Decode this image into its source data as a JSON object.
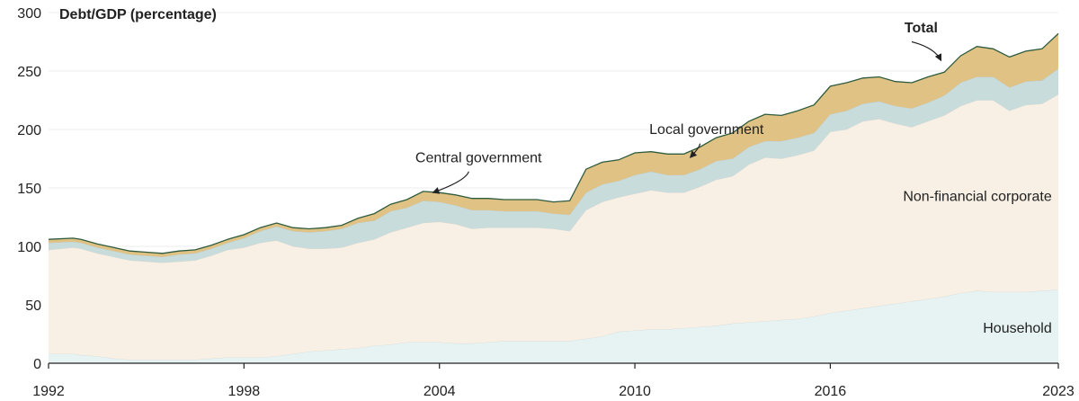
{
  "chart_data": {
    "type": "area",
    "stacked": true,
    "ylabel": "Debt/GDP (percentage)",
    "ylim": [
      0,
      300
    ],
    "yticks": [
      0,
      50,
      100,
      150,
      200,
      250,
      300
    ],
    "xlim": [
      1992,
      2023
    ],
    "xticks": [
      1992,
      1998,
      2004,
      2010,
      2016,
      2023
    ],
    "x": [
      1992,
      1992.75,
      1993,
      1993.5,
      1994,
      1994.5,
      1995,
      1995.5,
      1996,
      1996.5,
      1997,
      1997.5,
      1998,
      1998.5,
      1999,
      1999.5,
      2000,
      2000.5,
      2001,
      2001.5,
      2002,
      2002.5,
      2003,
      2003.5,
      2004,
      2004.5,
      2005,
      2005.5,
      2006,
      2006.5,
      2007,
      2007.5,
      2008,
      2008.5,
      2009,
      2009.5,
      2010,
      2010.5,
      2011,
      2011.5,
      2012,
      2012.5,
      2013,
      2013.5,
      2014,
      2014.5,
      2015,
      2015.5,
      2016,
      2016.5,
      2017,
      2017.5,
      2018,
      2018.5,
      2019,
      2019.5,
      2020,
      2020.5,
      2021,
      2021.5,
      2022,
      2022.5,
      2023
    ],
    "series": [
      {
        "name": "Household",
        "color": "#e6f3f2",
        "values": [
          8,
          8,
          7,
          6,
          4,
          3,
          3,
          3,
          3,
          3,
          4,
          5,
          5,
          5,
          6,
          8,
          10,
          11,
          12,
          13,
          15,
          16,
          18,
          18,
          18,
          17,
          17,
          18,
          19,
          19,
          19,
          19,
          19,
          21,
          23,
          27,
          28,
          29,
          29,
          30,
          31,
          32,
          34,
          35,
          36,
          37,
          38,
          40,
          43,
          45,
          47,
          49,
          51,
          53,
          55,
          57,
          60,
          62,
          61,
          61,
          61,
          62,
          63
        ]
      },
      {
        "name": "Non-financial corporate",
        "color": "#f8f0e5",
        "values": [
          89,
          91,
          91,
          88,
          87,
          85,
          84,
          83,
          84,
          85,
          88,
          92,
          94,
          98,
          99,
          92,
          88,
          87,
          87,
          90,
          91,
          96,
          98,
          102,
          103,
          102,
          98,
          98,
          97,
          97,
          97,
          96,
          94,
          110,
          115,
          115,
          117,
          119,
          117,
          116,
          120,
          125,
          126,
          135,
          140,
          138,
          140,
          142,
          155,
          155,
          160,
          160,
          154,
          149,
          152,
          155,
          160,
          163,
          164,
          155,
          160,
          160,
          167
        ]
      },
      {
        "name": "Central government",
        "color": "#c9dcdc",
        "values": [
          6,
          5,
          5,
          5,
          5,
          5,
          5,
          5,
          6,
          6,
          6,
          6,
          8,
          10,
          12,
          13,
          14,
          15,
          16,
          17,
          16,
          18,
          17,
          19,
          17,
          16,
          16,
          15,
          14,
          14,
          14,
          13,
          14,
          15,
          15,
          14,
          16,
          16,
          15,
          15,
          15,
          16,
          15,
          15,
          14,
          15,
          15,
          15,
          15,
          16,
          15,
          15,
          15,
          16,
          16,
          17,
          20,
          20,
          20,
          20,
          20,
          20,
          22
        ]
      },
      {
        "name": "Local government",
        "color": "#dfc284",
        "values": [
          3,
          3,
          3,
          3,
          3,
          3,
          3,
          3,
          3,
          3,
          3,
          3,
          3,
          3,
          3,
          3,
          3,
          3,
          3,
          4,
          6,
          6,
          7,
          8,
          8,
          9,
          10,
          10,
          10,
          10,
          10,
          10,
          12,
          20,
          19,
          18,
          19,
          17,
          18,
          18,
          19,
          20,
          22,
          22,
          23,
          22,
          23,
          24,
          24,
          24,
          22,
          21,
          21,
          22,
          22,
          20,
          23,
          26,
          24,
          26,
          26,
          27,
          30
        ]
      }
    ],
    "total": [
      106,
      107,
      106,
      102,
      99,
      96,
      95,
      94,
      96,
      97,
      101,
      106,
      110,
      116,
      120,
      116,
      115,
      116,
      118,
      124,
      128,
      136,
      140,
      147,
      146,
      144,
      141,
      141,
      140,
      140,
      140,
      138,
      139,
      166,
      172,
      174,
      180,
      181,
      179,
      179,
      185,
      193,
      197,
      207,
      213,
      212,
      216,
      221,
      237,
      240,
      244,
      245,
      241,
      240,
      245,
      249,
      263,
      271,
      269,
      262,
      267,
      269,
      282
    ],
    "total_color": "#2f5b3e",
    "annotations": [
      {
        "text": "Total",
        "bold": true,
        "anchor": "end",
        "tx": 2019.3,
        "ty": 283,
        "arrow": [
          [
            2018.5,
            275
          ],
          [
            2019.2,
            270
          ],
          [
            2019.4,
            259
          ]
        ]
      },
      {
        "text": "Local government",
        "bold": false,
        "anchor": "middle",
        "tx": 2012.2,
        "ty": 196,
        "arrow": [
          [
            2012.0,
            188
          ],
          [
            2012.0,
            185
          ],
          [
            2011.7,
            176
          ]
        ]
      },
      {
        "text": "Central government",
        "bold": false,
        "anchor": "middle",
        "tx": 2005.2,
        "ty": 172,
        "arrow": [
          [
            2004.9,
            164
          ],
          [
            2004.8,
            156
          ],
          [
            2003.8,
            146
          ]
        ]
      },
      {
        "text": "Non-financial corporate",
        "bold": false,
        "anchor": "end",
        "tx": 2022.8,
        "ty": 139
      },
      {
        "text": "Household",
        "bold": false,
        "anchor": "end",
        "tx": 2022.8,
        "ty": 26
      }
    ]
  }
}
